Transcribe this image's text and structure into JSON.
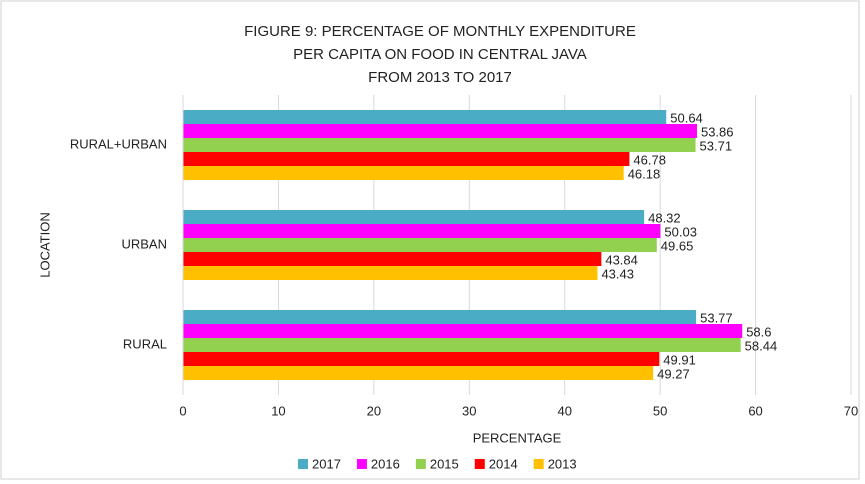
{
  "chart_data": {
    "type": "hbar",
    "title": [
      "FIGURE 9: PERCENTAGE OF MONTHLY EXPENDITURE",
      "PER CAPITA ON FOOD IN CENTRAL JAVA",
      "FROM 2013 TO 2017"
    ],
    "x_label": "PERCENTAGE",
    "y_label": "LOCATION",
    "categories": [
      "RURAL+URBAN",
      "URBAN",
      "RURAL"
    ],
    "series": [
      {
        "name": "2017",
        "color": "#4bacc6",
        "values": [
          50.64,
          48.32,
          53.77
        ]
      },
      {
        "name": "2016",
        "color": "#ff00ff",
        "values": [
          53.86,
          50.03,
          58.6
        ]
      },
      {
        "name": "2015",
        "color": "#92d050",
        "values": [
          53.71,
          49.65,
          58.44
        ]
      },
      {
        "name": "2014",
        "color": "#ff0000",
        "values": [
          46.78,
          43.84,
          49.91
        ]
      },
      {
        "name": "2013",
        "color": "#ffc000",
        "values": [
          46.18,
          43.43,
          49.27
        ]
      }
    ],
    "xlim": [
      0,
      70
    ],
    "xticks": [
      0,
      10,
      20,
      30,
      40,
      50,
      60,
      70
    ],
    "grid": true,
    "legend": "bottom"
  }
}
